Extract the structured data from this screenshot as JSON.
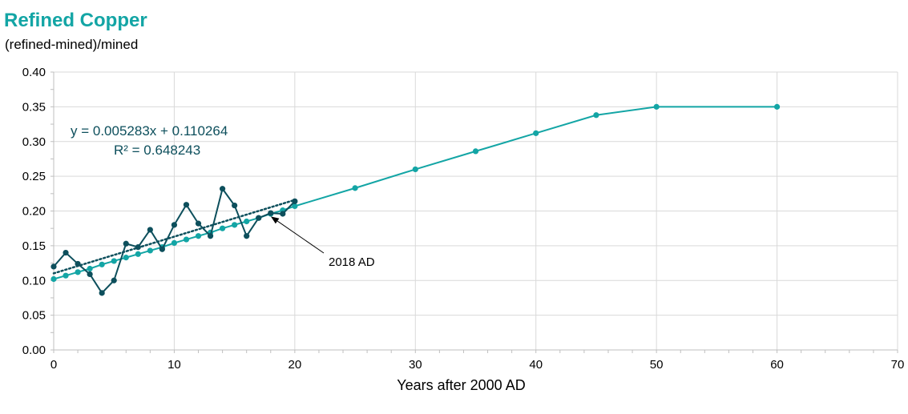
{
  "title": "Refined Copper",
  "subtitle": "(refined-mined)/mined",
  "chart_data": {
    "type": "line",
    "xlabel": "Years after 2000 AD",
    "ylabel": "",
    "xlim": [
      0,
      70
    ],
    "ylim": [
      0,
      0.4
    ],
    "x_ticks": [
      "0",
      "10",
      "20",
      "30",
      "40",
      "50",
      "60",
      "70"
    ],
    "y_ticks": [
      "0.00",
      "0.05",
      "0.10",
      "0.15",
      "0.20",
      "0.25",
      "0.30",
      "0.35",
      "0.40"
    ],
    "grid": "vertical and horizontal",
    "series": [
      {
        "color": "#0D4F5C",
        "x": [
          0,
          1,
          2,
          3,
          4,
          5,
          6,
          7,
          8,
          9,
          10,
          11,
          12,
          13,
          14,
          15,
          16,
          17,
          18,
          19,
          20
        ],
        "y": [
          0.12,
          0.14,
          0.124,
          0.109,
          0.082,
          0.1,
          0.153,
          0.148,
          0.173,
          0.145,
          0.18,
          0.209,
          0.182,
          0.164,
          0.232,
          0.208,
          0.164,
          0.19,
          0.197,
          0.196,
          0.214
        ]
      },
      {
        "color": "#13A5A5",
        "x": [
          0,
          1,
          2,
          3,
          4,
          5,
          6,
          7,
          8,
          9,
          10,
          11,
          12,
          13,
          14,
          15,
          16,
          17,
          18,
          19,
          20,
          25,
          30,
          35,
          40,
          45,
          50,
          60
        ],
        "y": [
          0.102,
          0.107,
          0.112,
          0.117,
          0.123,
          0.128,
          0.133,
          0.138,
          0.143,
          0.148,
          0.154,
          0.159,
          0.164,
          0.169,
          0.175,
          0.18,
          0.185,
          0.19,
          0.196,
          0.201,
          0.207,
          0.233,
          0.26,
          0.286,
          0.312,
          0.338,
          0.35,
          0.35
        ]
      }
    ],
    "trendline": {
      "color": "#0D4F5C",
      "slope": 0.005283,
      "intercept": 0.110264,
      "x_range": [
        0,
        20
      ],
      "equation": "y = 0.005283x  + 0.110264",
      "r2": "R² = 0.648243"
    },
    "annotations": [
      {
        "text": "2018 AD",
        "target_x": 18,
        "target_y": 0.196
      }
    ]
  }
}
